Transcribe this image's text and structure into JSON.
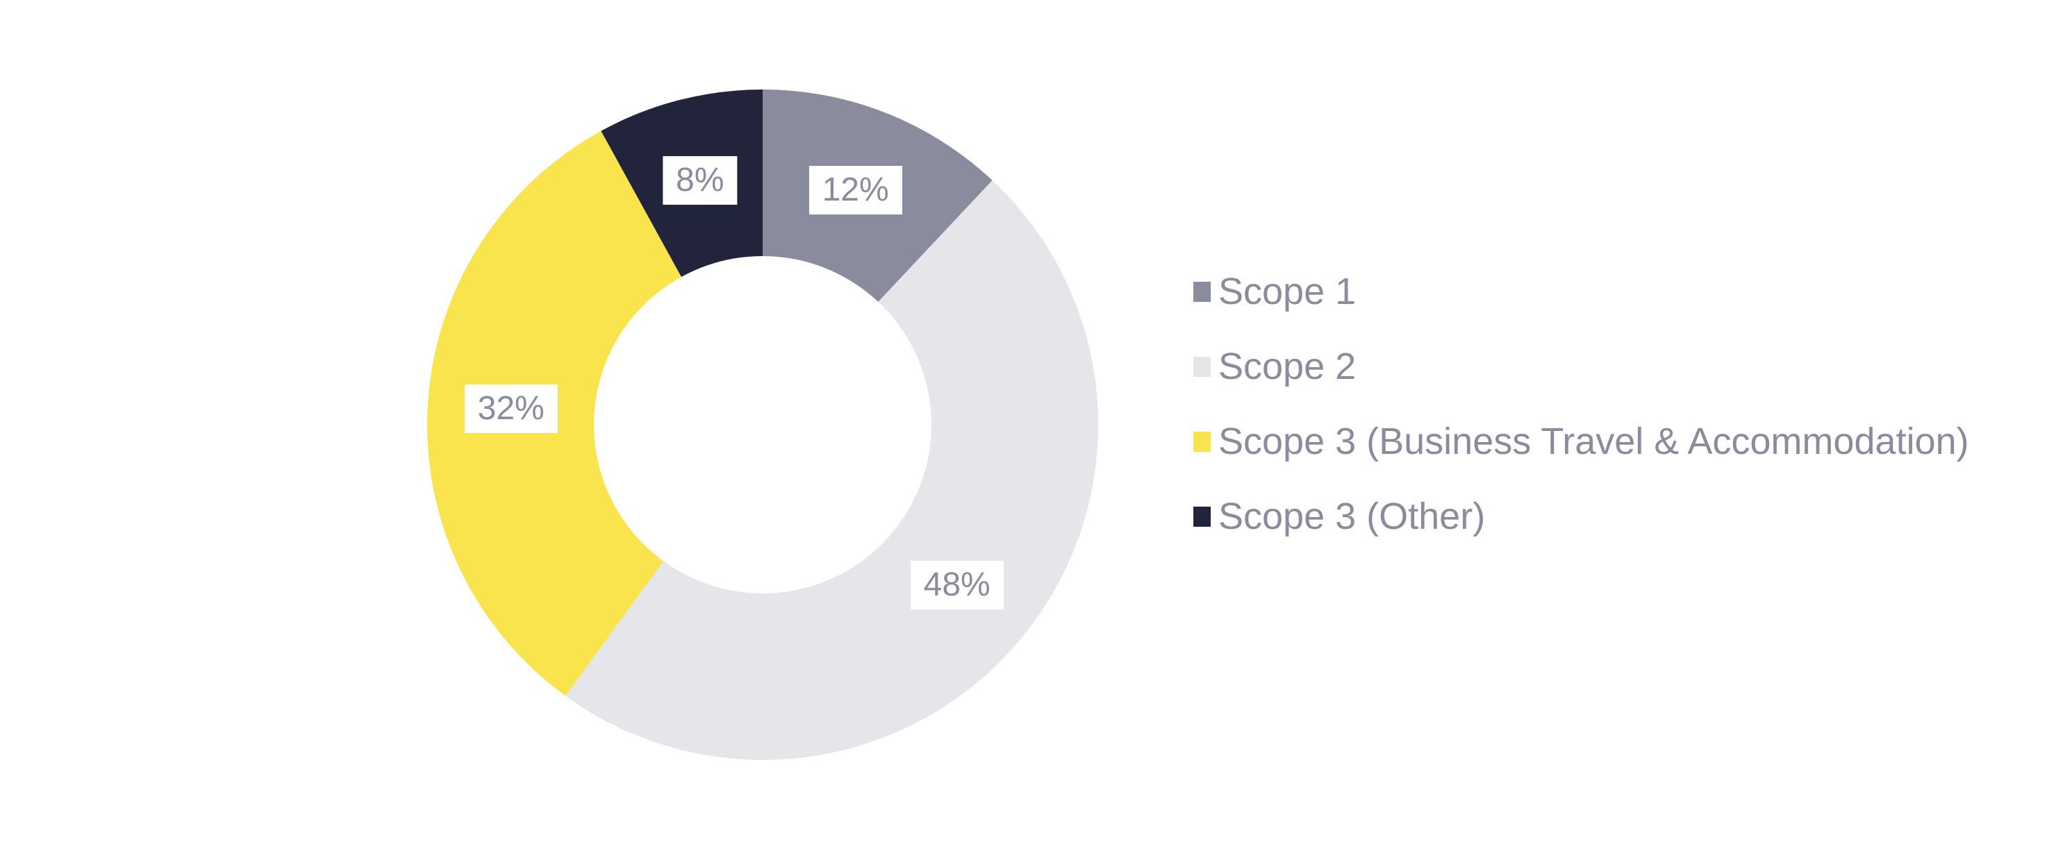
{
  "page": {
    "background_color": "#FFFFFF"
  },
  "chart_data": {
    "type": "pie",
    "variant": "donut",
    "title": "",
    "unit": "%",
    "start_angle_deg": 0,
    "direction": "clockwise",
    "inner_radius_ratio": 0.503,
    "legend_position": "right",
    "grid": false,
    "segments": [
      {
        "name": "Scope 1",
        "value": 12,
        "label": "12%",
        "color": "#8B8B9E"
      },
      {
        "name": "Scope 2",
        "value": 48,
        "label": "48%",
        "color": "#E5E5EA"
      },
      {
        "name": "Scope 3 (Business Travel & Accommodation)",
        "value": 32,
        "label": "32%",
        "color": "#FAE44E"
      },
      {
        "name": "Scope 3 (Other)",
        "value": 8,
        "label": "8%",
        "color": "#21243A"
      }
    ],
    "slice_label_text_color": "#8B8B9E",
    "slice_label_background": "#FFFFFF",
    "legend_text_color": "#8B8B9E"
  }
}
